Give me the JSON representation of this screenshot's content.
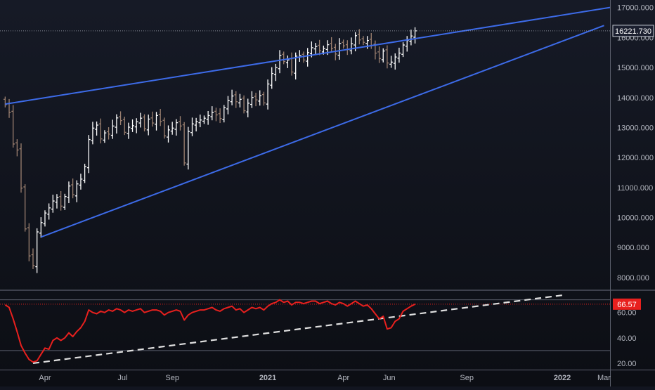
{
  "chart_data": {
    "type": "candlestick",
    "panels": [
      {
        "id": "price",
        "ylim": [
          7600,
          17250
        ],
        "y_ticks": [
          8000,
          9000,
          10000,
          11000,
          12000,
          13000,
          14000,
          15000,
          16000,
          17000
        ],
        "y_tick_labels": [
          "8000.000",
          "9000.000",
          "10000.000",
          "11000.000",
          "12000.000",
          "13000.000",
          "14000.000",
          "15000.000",
          "16000.000",
          "17000.000"
        ],
        "last_value": 16221.73,
        "last_value_label": "16221.730",
        "series": [
          {
            "name": "",
            "style": "ohlc-bars",
            "colors": {
              "up": "#ffffff",
              "down": "#9c8070"
            },
            "close": [
              13760,
              13500,
              12450,
              12250,
              10980,
              9620,
              8720,
              8400,
              9520,
              9830,
              10150,
              10320,
              10550,
              10660,
              10380,
              10700,
              11050,
              10760,
              11120,
              11280,
              11700,
              12600,
              12980,
              13080,
              12620,
              12820,
              12780,
              13050,
              13320,
              13230,
              12840,
              13010,
              13060,
              13190,
              13310,
              12960,
              13280,
              13150,
              13400,
              13200,
              12720,
              12920,
              12980,
              13160,
              13050,
              11820,
              12870,
              13120,
              13200,
              13250,
              13310,
              13400,
              13500,
              13420,
              13300,
              13660,
              13900,
              14050,
              13860,
              13940,
              13560,
              13810,
              14000,
              13920,
              14060,
              13820,
              14450,
              14800,
              15000,
              15400,
              15200,
              15250,
              14850,
              15380,
              15400,
              15250,
              15500,
              15660,
              15700,
              15560,
              15640,
              15760,
              15630,
              15450,
              15800,
              15720,
              15600,
              15790,
              16060,
              15920,
              15840,
              15900,
              15740,
              15480,
              15300,
              15550,
              15150,
              15180,
              15350,
              15480,
              15750,
              15900,
              16050,
              16221.73
            ],
            "up": [
              0,
              0,
              0,
              0,
              0,
              0,
              0,
              0,
              1,
              1,
              1,
              1,
              1,
              1,
              0,
              1,
              1,
              0,
              1,
              1,
              1,
              1,
              1,
              1,
              0,
              1,
              0,
              1,
              1,
              0,
              0,
              1,
              1,
              1,
              1,
              0,
              1,
              0,
              1,
              0,
              0,
              1,
              1,
              1,
              0,
              0,
              1,
              1,
              1,
              1,
              1,
              1,
              1,
              0,
              0,
              1,
              1,
              1,
              0,
              1,
              0,
              1,
              1,
              0,
              1,
              0,
              1,
              1,
              1,
              1,
              0,
              1,
              0,
              1,
              1,
              0,
              1,
              1,
              1,
              0,
              1,
              1,
              0,
              0,
              1,
              0,
              0,
              1,
              1,
              0,
              0,
              1,
              0,
              0,
              0,
              1,
              0,
              1,
              1,
              1,
              1,
              1,
              1,
              1
            ]
          }
        ],
        "trendlines": [
          {
            "color": "#3d6be8",
            "dashed": false,
            "x": [
              0,
              152
            ],
            "y": [
              13780,
              17000
            ]
          },
          {
            "color": "#3d6be8",
            "dashed": false,
            "x": [
              9,
              150.5
            ],
            "y": [
              9350,
              16400
            ]
          }
        ],
        "reference_line": {
          "value": 16221.73,
          "color": "#a0a4b0",
          "dashed": true
        }
      },
      {
        "id": "oscillator",
        "ylim": [
          15,
          77
        ],
        "y_ticks": [
          20,
          40,
          60
        ],
        "y_tick_labels": [
          "20.00",
          "40.00",
          "60.00"
        ],
        "band_levels": [
          30,
          70
        ],
        "last_value": 66.57,
        "last_value_label": "66.57",
        "series": [
          {
            "name": "",
            "style": "line",
            "color": "#e8201e",
            "values": [
              66,
              64,
              55,
              45,
              34,
              28,
              23,
              21,
              22,
              27,
              32,
              31,
              38,
              40,
              38,
              40,
              44,
              41,
              45,
              48,
              53,
              62,
              60,
              59,
              61,
              60,
              62,
              61,
              63,
              62,
              60,
              62,
              61,
              62,
              63,
              60,
              61,
              62,
              62,
              61,
              58,
              60,
              61,
              62,
              61,
              54,
              58,
              60,
              61,
              62,
              62,
              63,
              64,
              62,
              61,
              63,
              64,
              65,
              62,
              63,
              60,
              62,
              64,
              63,
              64,
              62,
              65,
              67,
              68,
              70,
              68,
              69,
              66,
              68,
              68,
              67,
              68,
              69,
              69,
              67,
              68,
              69,
              67,
              66,
              68,
              67,
              65,
              67,
              69,
              67,
              65,
              66,
              63,
              59,
              55,
              57,
              47,
              48,
              53,
              55,
              61,
              63,
              65,
              66.57
            ],
            "last_label_color": "#e8201e"
          }
        ],
        "trendlines": [
          {
            "color": "#e0e0e0",
            "dashed": true,
            "x": [
              7,
              141
            ],
            "y": [
              20,
              74
            ]
          }
        ],
        "reference_line": {
          "value": 66.57,
          "color": "#e8201e",
          "dashed": true
        }
      }
    ],
    "x": {
      "count": 104,
      "view_range": [
        -1.3,
        152
      ],
      "ticks": [
        {
          "label": "Apr",
          "at": 10
        },
        {
          "label": "Jul",
          "at": 29.5
        },
        {
          "label": "Sep",
          "at": 42
        },
        {
          "label": "2021",
          "at": 66,
          "bold": true
        },
        {
          "label": "Apr",
          "at": 85
        },
        {
          "label": "Jun",
          "at": 96.5
        },
        {
          "label": "Sep",
          "at": 116
        },
        {
          "label": "2022",
          "at": 140,
          "bold": true
        },
        {
          "label": "Mar",
          "at": 150.5
        }
      ]
    },
    "theme": {
      "background": "#121520",
      "text": "#b2b5be",
      "panel_border": "#5a5e6b",
      "axis_bg": "#121520"
    }
  }
}
